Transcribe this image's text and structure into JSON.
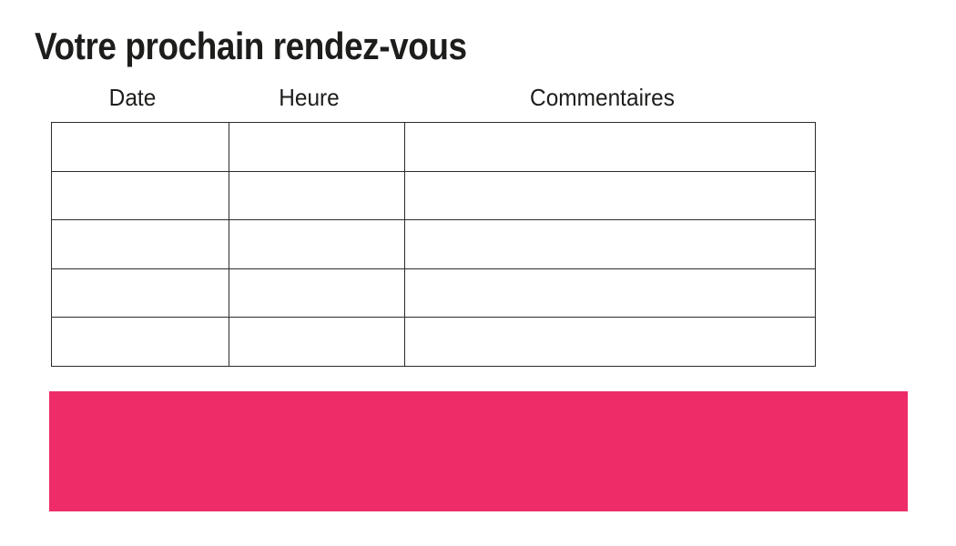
{
  "page": {
    "title": "Votre prochain rendez-vous"
  },
  "table": {
    "headers": [
      "Date",
      "Heure",
      "Commentaires"
    ],
    "rows": [
      {
        "cells": [
          "",
          "",
          ""
        ]
      },
      {
        "cells": [
          "",
          "",
          ""
        ]
      },
      {
        "cells": [
          "",
          "",
          ""
        ]
      },
      {
        "cells": [
          "",
          "",
          ""
        ]
      },
      {
        "cells": [
          "",
          "",
          ""
        ]
      }
    ]
  },
  "banner": {
    "text": "",
    "color": "#EE2D68"
  },
  "colors": {
    "accent_pink": "#EE2D68",
    "text": "#1D1D1B",
    "table_border": "#2B2B2B",
    "background": "#FFFFFF"
  }
}
